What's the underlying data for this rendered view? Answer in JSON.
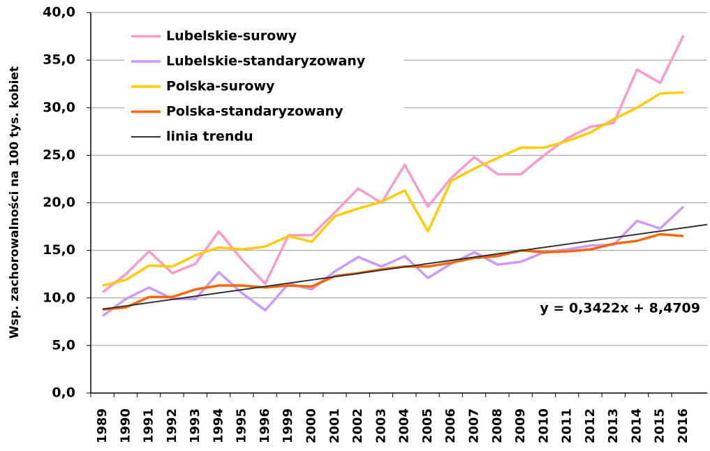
{
  "chart_data": {
    "type": "line",
    "y_label": "Wsp. zachorowalności na 100 tys. kobiet",
    "categories": [
      "1989",
      "1990",
      "1991",
      "1992",
      "1993",
      "1994",
      "1995",
      "1996",
      "1999",
      "2000",
      "2001",
      "2002",
      "2003",
      "2004",
      "2005",
      "2006",
      "2007",
      "2008",
      "2009",
      "2010",
      "2011",
      "2012",
      "2013",
      "2014",
      "2015",
      "2016"
    ],
    "series": [
      {
        "name": "Lubelskie-surowy",
        "color": "#ff99cc",
        "values": [
          10.6,
          12.5,
          14.9,
          12.6,
          13.6,
          17.0,
          14.0,
          11.5,
          16.6,
          16.6,
          19.0,
          21.5,
          20.0,
          24.0,
          19.6,
          22.6,
          24.8,
          23.0,
          23.0,
          25.0,
          26.8,
          28.0,
          28.4,
          34.0,
          32.6,
          37.6
        ]
      },
      {
        "name": "Lubelskie-standaryzowany",
        "color": "#cc99ff",
        "values": [
          8.1,
          9.9,
          11.1,
          9.9,
          9.9,
          12.7,
          10.5,
          8.7,
          11.5,
          10.9,
          12.8,
          14.3,
          13.3,
          14.4,
          12.1,
          13.6,
          14.8,
          13.5,
          13.8,
          14.8,
          15.1,
          15.5,
          15.6,
          18.1,
          17.3,
          19.6
        ]
      },
      {
        "name": "Polska-surowy",
        "color": "#ffcc00",
        "values": [
          11.3,
          11.9,
          13.4,
          13.3,
          14.5,
          15.3,
          15.1,
          15.4,
          16.5,
          15.9,
          18.6,
          19.4,
          20.1,
          21.3,
          17.0,
          22.3,
          23.6,
          24.7,
          25.8,
          25.8,
          26.5,
          27.4,
          28.8,
          30.0,
          31.5,
          31.6
        ]
      },
      {
        "name": "Polska-standaryzowany",
        "color": "#ff6600",
        "values": [
          8.8,
          9.0,
          10.1,
          10.1,
          10.9,
          11.3,
          11.3,
          11.1,
          11.3,
          11.2,
          12.3,
          12.6,
          13.0,
          13.3,
          13.3,
          13.7,
          14.2,
          14.4,
          15.0,
          14.8,
          14.9,
          15.1,
          15.7,
          16.0,
          16.7,
          16.5
        ]
      }
    ],
    "trendline": {
      "name": "linia trendu",
      "color": "#333333",
      "slope": 0.3422,
      "intercept": 8.4709,
      "equation": "y = 0,3422x + 8,4709"
    },
    "ylim": [
      0,
      40
    ],
    "yticks": [
      {
        "value": 0,
        "label": "0,0"
      },
      {
        "value": 5,
        "label": "5,0"
      },
      {
        "value": 10,
        "label": "10,0"
      },
      {
        "value": 15,
        "label": "15,0"
      },
      {
        "value": 20,
        "label": "20,0"
      },
      {
        "value": 25,
        "label": "25,0"
      },
      {
        "value": 30,
        "label": "30,0"
      },
      {
        "value": 35,
        "label": "35,0"
      },
      {
        "value": 40,
        "label": "40,0"
      }
    ],
    "grid": true
  }
}
